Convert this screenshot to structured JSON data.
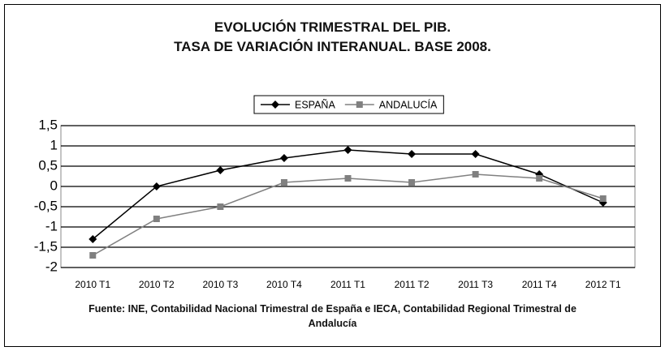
{
  "chart_data": {
    "type": "line",
    "title": "EVOLUCIÓN TRIMESTRAL DEL PIB.\nTASA DE VARIACIÓN INTERANUAL. BASE 2008.",
    "source": "Fuente: INE, Contabilidad Nacional Trimestral de España e IECA, Contabilidad Regional Trimestral de\nAndalucía",
    "categories": [
      "2010 T1",
      "2010 T2",
      "2010 T3",
      "2010 T4",
      "2011 T1",
      "2011 T2",
      "2011 T3",
      "2011 T4",
      "2012 T1"
    ],
    "series": [
      {
        "name": "ESPAÑA",
        "color": "#000000",
        "marker": "diamond",
        "values": [
          -1.3,
          0.0,
          0.4,
          0.7,
          0.9,
          0.8,
          0.8,
          0.3,
          -0.4
        ]
      },
      {
        "name": "ANDALUCÍA",
        "color": "#808080",
        "marker": "square",
        "values": [
          -1.7,
          -0.8,
          -0.5,
          0.1,
          0.2,
          0.1,
          0.3,
          0.2,
          -0.3
        ]
      }
    ],
    "ylim": [
      -2,
      1.5
    ],
    "yticks": [
      -2,
      {
        "value": -1.5,
        "label": "-1,5"
      },
      -1,
      {
        "value": -0.5,
        "label": "-0,5"
      },
      0,
      {
        "value": 0.5,
        "label": "0,5"
      },
      1,
      {
        "value": 1.5,
        "label": "1,5"
      }
    ],
    "grid": true,
    "legend": "top"
  }
}
